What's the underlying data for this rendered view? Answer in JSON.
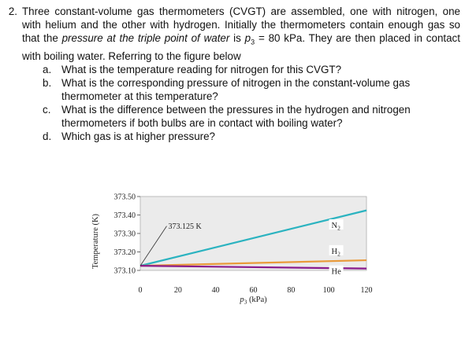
{
  "problem": {
    "number": "2.",
    "text_parts": [
      {
        "t": "Three constant-volume gas thermometers (CVGT) are assembled, one with nitrogen, one with helium and the other with hydrogen. Initially the thermometers contain enough gas so that the ",
        "i": false
      },
      {
        "t": "pressure at the triple point of water",
        "i": true
      },
      {
        "t": " is ",
        "i": false
      },
      {
        "t": "p",
        "i": true
      },
      {
        "t": "3",
        "sub": true
      },
      {
        "t": " = 80 kPa. They are then placed in contact with boiling water. Referring to the figure below",
        "i": false
      }
    ],
    "sub_questions": [
      {
        "letter": "a.",
        "text": "What is the temperature reading for nitrogen for this CVGT?"
      },
      {
        "letter": "b.",
        "text": "What is the corresponding pressure of nitrogen in the constant-volume gas thermometer at this temperature?"
      },
      {
        "letter": "c.",
        "text": "What is the difference between the pressures in the hydrogen and nitrogen thermometers if both bulbs are in contact with boiling water?"
      },
      {
        "letter": "d.",
        "text": "Which gas is at higher pressure?"
      }
    ]
  },
  "chart_data": {
    "type": "line",
    "ylabel": "Temperature (K)",
    "xlabel_parts": {
      "main": "p",
      "sub": "3",
      "rest": " (kPa)"
    },
    "xlim": [
      0,
      120
    ],
    "ylim": [
      373.1,
      373.5
    ],
    "x_ticks": [
      0,
      20,
      40,
      60,
      80,
      100,
      120
    ],
    "y_ticks": [
      373.1,
      373.2,
      373.3,
      373.4,
      373.5
    ],
    "y_tick_labels": [
      "373.10",
      "373.20",
      "373.30",
      "373.40",
      "373.50"
    ],
    "annotation": "373.125 K",
    "grid": false,
    "series": [
      {
        "name": "N",
        "name_sub": "2",
        "color": "#2bb3c0",
        "x": [
          0,
          120
        ],
        "y": [
          373.125,
          373.425
        ]
      },
      {
        "name": "H",
        "name_sub": "2",
        "color": "#e99a3a",
        "x": [
          0,
          120
        ],
        "y": [
          373.125,
          373.155
        ]
      },
      {
        "name": "He",
        "name_sub": "",
        "color": "#8a1a8c",
        "x": [
          0,
          120
        ],
        "y": [
          373.125,
          373.11
        ]
      }
    ]
  }
}
